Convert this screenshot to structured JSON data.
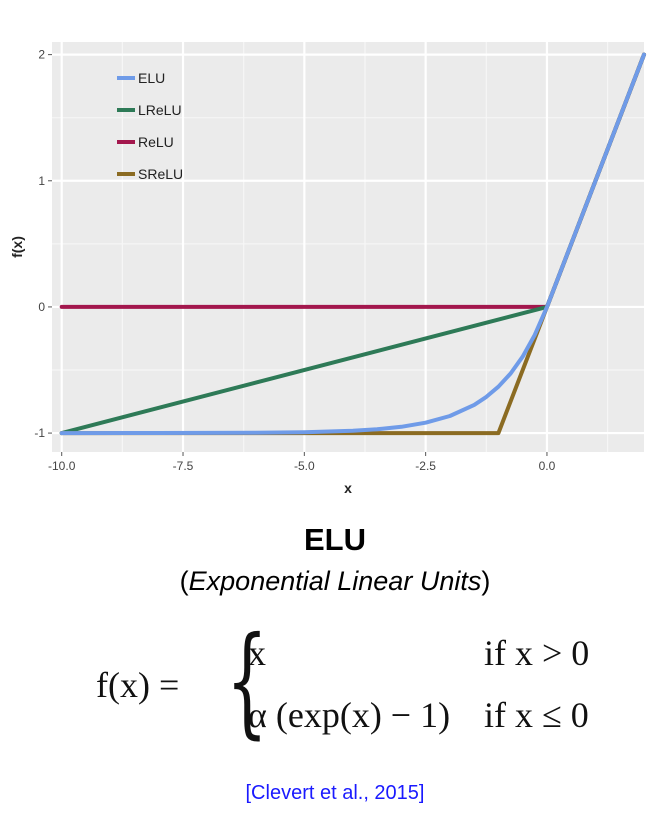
{
  "chart_data": {
    "type": "line",
    "xlabel": "x",
    "ylabel": "f(x)",
    "xlim": [
      -10.2,
      2.0
    ],
    "ylim": [
      -1.15,
      2.1
    ],
    "x_ticks": [
      -10.0,
      -7.5,
      -5.0,
      -2.5,
      0.0
    ],
    "x_tick_labels": [
      "-10.0",
      "-7.5",
      "-5.0",
      "-2.5",
      "0.0"
    ],
    "y_ticks": [
      -1,
      0,
      1,
      2
    ],
    "y_tick_labels": [
      "-1",
      "0",
      "1",
      "2"
    ],
    "grid": true,
    "legend_position": "top-left",
    "series": [
      {
        "name": "ELU",
        "color": "#6f9be8",
        "x": [
          -10,
          -8,
          -6,
          -5,
          -4,
          -3.5,
          -3,
          -2.5,
          -2,
          -1.5,
          -1.25,
          -1,
          -0.75,
          -0.5,
          -0.25,
          0,
          0.5,
          1,
          1.5,
          2
        ],
        "y": [
          -1.0,
          -0.9997,
          -0.9975,
          -0.9933,
          -0.9817,
          -0.9698,
          -0.9502,
          -0.9179,
          -0.8647,
          -0.7769,
          -0.7135,
          -0.6321,
          -0.5276,
          -0.3935,
          -0.2212,
          0,
          0.5,
          1,
          1.5,
          2
        ]
      },
      {
        "name": "LReLU",
        "color": "#2e7a57",
        "x": [
          -10,
          0,
          2
        ],
        "y": [
          -1.0,
          0,
          2
        ]
      },
      {
        "name": "ReLU",
        "color": "#a3174d",
        "x": [
          -10,
          0,
          2
        ],
        "y": [
          0,
          0,
          2
        ]
      },
      {
        "name": "SReLU",
        "color": "#8b6b22",
        "x": [
          -10,
          -1,
          0,
          2
        ],
        "y": [
          -1,
          -1,
          0,
          2
        ]
      }
    ]
  },
  "caption": {
    "title": "ELU",
    "subtitle_open": "(",
    "subtitle_italic": "Exponential Linear Units",
    "subtitle_close": ")"
  },
  "formula": {
    "lhs": "f(x)  =",
    "case1_expr": "x",
    "case1_cond": "if x > 0",
    "case2_expr": "α (exp(x) − 1)",
    "case2_cond": "if x ≤ 0"
  },
  "citation": "[Clevert et al., 2015]"
}
